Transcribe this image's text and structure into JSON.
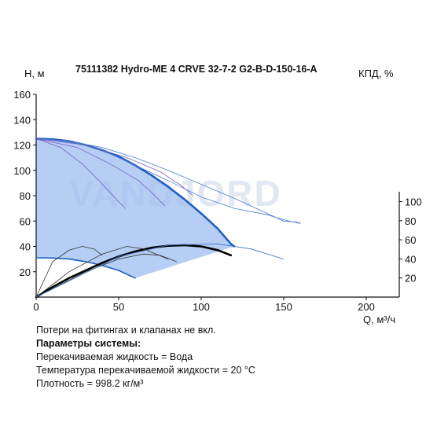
{
  "chart_data": {
    "type": "line",
    "title": "75111382 Hydro-ME 4 CRVE 32-7-2 G2-B-D-150-16-A",
    "ylabel": "H, м",
    "y2label": "КПД, %",
    "xlabel": "Q, м³/ч",
    "xlim": [
      0,
      220
    ],
    "ylim": [
      0,
      160
    ],
    "y2lim": [
      0,
      140
    ],
    "x_ticks": [
      0,
      50,
      100,
      150,
      200
    ],
    "y_ticks": [
      20,
      40,
      60,
      80,
      100,
      120,
      140,
      160
    ],
    "y2_ticks": [
      20,
      40,
      60,
      80,
      100
    ],
    "watermark": "VANDJORD",
    "series": [
      {
        "kind": "head-max",
        "color": "#1f5fbf",
        "points": [
          [
            0,
            125
          ],
          [
            10,
            124.5
          ],
          [
            20,
            123
          ],
          [
            30,
            120
          ],
          [
            40,
            116
          ],
          [
            50,
            111
          ],
          [
            60,
            104
          ],
          [
            70,
            96
          ],
          [
            80,
            87
          ],
          [
            90,
            77
          ],
          [
            100,
            66
          ],
          [
            110,
            54
          ],
          [
            118,
            42
          ],
          [
            120,
            40
          ]
        ]
      },
      {
        "kind": "head-extended",
        "color": "#4a7fd0",
        "points": [
          [
            0,
            125
          ],
          [
            20,
            123
          ],
          [
            40,
            116
          ],
          [
            60,
            104
          ],
          [
            80,
            92
          ],
          [
            100,
            79
          ],
          [
            120,
            70
          ],
          [
            140,
            65
          ],
          [
            150,
            61
          ],
          [
            160,
            58
          ]
        ]
      },
      {
        "kind": "head-extended",
        "color": "#4a7fd0",
        "points": [
          [
            0,
            125
          ],
          [
            20,
            123
          ],
          [
            40,
            118
          ],
          [
            60,
            110
          ],
          [
            80,
            100
          ],
          [
            100,
            89
          ],
          [
            120,
            78
          ],
          [
            140,
            66
          ],
          [
            150,
            60
          ],
          [
            160,
            59
          ]
        ]
      },
      {
        "kind": "head-min",
        "color": "#1f5fbf",
        "points": [
          [
            0,
            31
          ],
          [
            10,
            30.8
          ],
          [
            20,
            30
          ],
          [
            30,
            28
          ],
          [
            40,
            25
          ],
          [
            50,
            21
          ],
          [
            55,
            18
          ],
          [
            60,
            15
          ]
        ]
      },
      {
        "kind": "partial-speed",
        "color": "#7a5fc6",
        "points": [
          [
            0,
            125
          ],
          [
            15,
            118
          ],
          [
            28,
            105
          ],
          [
            38,
            92
          ],
          [
            48,
            78
          ],
          [
            54,
            70
          ]
        ]
      },
      {
        "kind": "partial-speed",
        "color": "#7a5fc6",
        "points": [
          [
            0,
            125
          ],
          [
            25,
            118
          ],
          [
            45,
            105
          ],
          [
            62,
            92
          ],
          [
            72,
            80
          ],
          [
            78,
            72
          ]
        ]
      },
      {
        "kind": "partial-speed",
        "color": "#7a5fc6",
        "points": [
          [
            0,
            125
          ],
          [
            30,
            120
          ],
          [
            55,
            110
          ],
          [
            75,
            99
          ],
          [
            88,
            88
          ],
          [
            95,
            80
          ]
        ]
      },
      {
        "kind": "efficiency-max",
        "color": "#000000",
        "points": [
          [
            0,
            0
          ],
          [
            10,
            8
          ],
          [
            20,
            15
          ],
          [
            30,
            21
          ],
          [
            40,
            27
          ],
          [
            50,
            32
          ],
          [
            60,
            36
          ],
          [
            70,
            39
          ],
          [
            80,
            40.5
          ],
          [
            90,
            41
          ],
          [
            100,
            40
          ],
          [
            110,
            37
          ],
          [
            118,
            33
          ]
        ]
      },
      {
        "kind": "efficiency-partial",
        "color": "#333333",
        "points": [
          [
            0,
            0
          ],
          [
            10,
            28
          ],
          [
            20,
            37
          ],
          [
            28,
            40
          ],
          [
            35,
            38
          ],
          [
            40,
            33
          ]
        ]
      },
      {
        "kind": "efficiency-partial",
        "color": "#333333",
        "points": [
          [
            0,
            0
          ],
          [
            20,
            20
          ],
          [
            40,
            34
          ],
          [
            55,
            40
          ],
          [
            65,
            38
          ],
          [
            80,
            30
          ]
        ]
      },
      {
        "kind": "efficiency-partial",
        "color": "#333333",
        "points": [
          [
            0,
            0
          ],
          [
            15,
            10
          ],
          [
            30,
            20
          ],
          [
            50,
            30
          ],
          [
            65,
            34
          ],
          [
            75,
            33
          ],
          [
            85,
            28
          ]
        ]
      },
      {
        "kind": "efficiency-extended",
        "color": "#3a6fc8",
        "points": [
          [
            0,
            0
          ],
          [
            50,
            32
          ],
          [
            80,
            41
          ],
          [
            110,
            42
          ],
          [
            130,
            38
          ],
          [
            150,
            30
          ]
        ]
      }
    ],
    "operating_area": {
      "color": "#9dbcf0",
      "upper": [
        [
          0,
          125
        ],
        [
          10,
          124.5
        ],
        [
          20,
          123
        ],
        [
          30,
          120
        ],
        [
          40,
          116
        ],
        [
          50,
          111
        ],
        [
          60,
          104
        ],
        [
          70,
          96
        ],
        [
          80,
          87
        ],
        [
          90,
          77
        ],
        [
          100,
          66
        ],
        [
          110,
          54
        ],
        [
          118,
          42
        ],
        [
          120,
          40
        ]
      ],
      "lower": [
        [
          120,
          40
        ],
        [
          60,
          15
        ],
        [
          55,
          18
        ],
        [
          50,
          21
        ],
        [
          40,
          25
        ],
        [
          30,
          28
        ],
        [
          20,
          30
        ],
        [
          10,
          30.8
        ],
        [
          0,
          31
        ]
      ]
    }
  },
  "notes": {
    "line1": "Потери на фитингах и клапанах не вкл.",
    "line2": "Параметры системы:",
    "line3": "Перекачиваемая жидкость = Вода",
    "line4": "Температура перекачиваемой жидкости = 20 °C",
    "line5": "Плотность = 998.2 кг/м³"
  }
}
